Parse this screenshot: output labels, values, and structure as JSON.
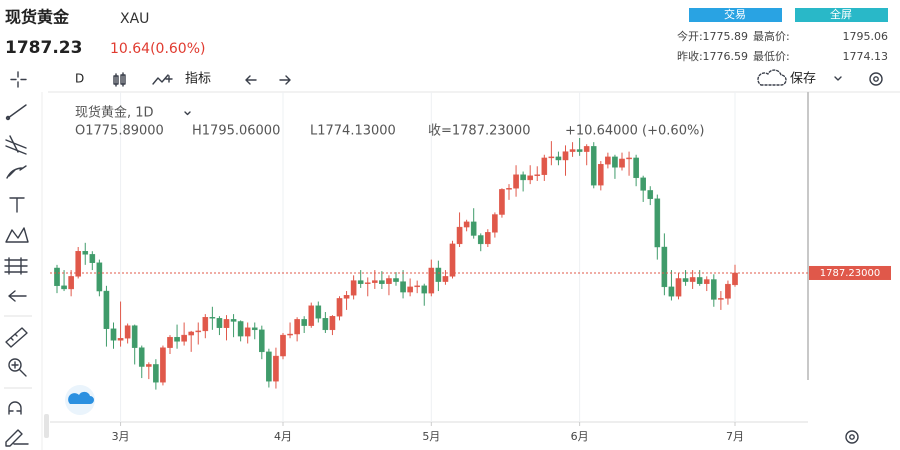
{
  "header": {
    "name": "现货黄金",
    "symbol": "XAU",
    "price": "1787.23",
    "change": "10.64(0.60%)",
    "buttons": [
      "交易",
      "全屏"
    ],
    "stats": [
      {
        "label": "今开:",
        "value": "1775.89"
      },
      {
        "label": "最高价:",
        "value": "1795.06"
      },
      {
        "label": "昨收:",
        "value": "1776.59"
      },
      {
        "label": "最低价:",
        "value": "1774.13"
      }
    ]
  },
  "toolbar": {
    "interval": "D",
    "indicators": "指标",
    "save": "保存"
  },
  "legend": {
    "title": "现货黄金, 1D",
    "open": "O1775.89000",
    "high": "H1795.06000",
    "low": "L1774.13000",
    "close": "收=1787.23000",
    "change": "+10.64000 (+0.60%)"
  },
  "chart_data": {
    "type": "candlestick",
    "categories": [
      null,
      null,
      null,
      null,
      null,
      null,
      null,
      null,
      null,
      "3月",
      null,
      null,
      null,
      null,
      null,
      null,
      null,
      null,
      null,
      null,
      null,
      null,
      null,
      null,
      null,
      null,
      null,
      null,
      null,
      null,
      null,
      null,
      "4月",
      null,
      null,
      null,
      null,
      null,
      null,
      null,
      null,
      null,
      null,
      null,
      null,
      null,
      null,
      null,
      null,
      null,
      null,
      null,
      null,
      "5月",
      null,
      null,
      null,
      null,
      null,
      null,
      null,
      null,
      null,
      null,
      null,
      null,
      null,
      null,
      null,
      null,
      null,
      null,
      null,
      null,
      "6月",
      null,
      null,
      null,
      null,
      null,
      null,
      null,
      null,
      null,
      null,
      null,
      null,
      null,
      null,
      null,
      null,
      null,
      null,
      null,
      null,
      null,
      "7月"
    ],
    "open": [
      1792,
      1775,
      1772,
      1784,
      1808,
      1805,
      1797,
      1770,
      1734,
      1723,
      1725,
      1737,
      1716,
      1698,
      1700,
      1683,
      1716,
      1726,
      1722,
      1728,
      1731,
      1732,
      1745,
      1744,
      1735,
      1743,
      1741,
      1727,
      1735,
      1733,
      1712,
      1684,
      1708,
      1728,
      1729,
      1743,
      1737,
      1756,
      1744,
      1733,
      1746,
      1763,
      1766,
      1780,
      1777,
      1778,
      1780,
      1777,
      1782,
      1779,
      1769,
      1774,
      1775,
      1768,
      1792,
      1779,
      1784,
      1815,
      1831,
      1836,
      1823,
      1815,
      1826,
      1843,
      1867,
      1868,
      1881,
      1876,
      1880,
      1881,
      1897,
      1898,
      1895,
      1903,
      1905,
      1903,
      1908,
      1871,
      1891,
      1898,
      1888,
      1896,
      1897,
      1878,
      1866,
      1858,
      1812,
      1774,
      1765,
      1782,
      1779,
      1783,
      1777,
      1781,
      1762,
      1763,
      1775.89
    ],
    "high": [
      1795,
      1790,
      1790,
      1812,
      1816,
      1808,
      1800,
      1775,
      1740,
      1760,
      1739,
      1738,
      1718,
      1702,
      1705,
      1718,
      1728,
      1738,
      1740,
      1732,
      1740,
      1748,
      1755,
      1746,
      1747,
      1748,
      1742,
      1740,
      1740,
      1737,
      1715,
      1716,
      1730,
      1740,
      1745,
      1746,
      1759,
      1760,
      1750,
      1747,
      1765,
      1770,
      1785,
      1790,
      1783,
      1790,
      1789,
      1785,
      1788,
      1790,
      1782,
      1780,
      1777,
      1800,
      1799,
      1790,
      1818,
      1845,
      1838,
      1849,
      1825,
      1829,
      1845,
      1868,
      1872,
      1890,
      1884,
      1890,
      1889,
      1900,
      1913,
      1903,
      1909,
      1912,
      1916,
      1910,
      1912,
      1894,
      1902,
      1900,
      1902,
      1903,
      1900,
      1880,
      1870,
      1862,
      1825,
      1790,
      1787,
      1790,
      1790,
      1790,
      1784,
      1786,
      1770,
      1780,
      1795.06
    ],
    "low": [
      1768,
      1770,
      1765,
      1782,
      1795,
      1790,
      1765,
      1717,
      1715,
      1717,
      1720,
      1700,
      1687,
      1686,
      1676,
      1680,
      1710,
      1715,
      1718,
      1712,
      1719,
      1725,
      1733,
      1728,
      1723,
      1726,
      1722,
      1720,
      1724,
      1705,
      1678,
      1677,
      1705,
      1725,
      1722,
      1730,
      1735,
      1740,
      1730,
      1728,
      1742,
      1752,
      1762,
      1773,
      1765,
      1772,
      1772,
      1766,
      1775,
      1763,
      1765,
      1768,
      1756,
      1765,
      1770,
      1776,
      1782,
      1812,
      1827,
      1820,
      1808,
      1812,
      1821,
      1840,
      1857,
      1860,
      1865,
      1872,
      1875,
      1875,
      1890,
      1890,
      1880,
      1898,
      1899,
      1890,
      1868,
      1866,
      1887,
      1877,
      1885,
      1880,
      1870,
      1855,
      1852,
      1800,
      1766,
      1761,
      1762,
      1775,
      1772,
      1775,
      1770,
      1755,
      1752,
      1757,
      1774.13
    ],
    "close": [
      1775,
      1772,
      1784,
      1808,
      1805,
      1797,
      1770,
      1734,
      1723,
      1725,
      1737,
      1716,
      1698,
      1700,
      1683,
      1716,
      1726,
      1722,
      1728,
      1731,
      1732,
      1745,
      1744,
      1735,
      1743,
      1741,
      1727,
      1735,
      1733,
      1712,
      1684,
      1708,
      1728,
      1729,
      1743,
      1737,
      1756,
      1744,
      1733,
      1746,
      1763,
      1766,
      1780,
      1777,
      1778,
      1780,
      1777,
      1782,
      1779,
      1769,
      1774,
      1775,
      1768,
      1792,
      1779,
      1784,
      1815,
      1831,
      1836,
      1823,
      1815,
      1826,
      1843,
      1867,
      1868,
      1881,
      1876,
      1880,
      1881,
      1897,
      1898,
      1895,
      1903,
      1905,
      1903,
      1908,
      1871,
      1891,
      1898,
      1888,
      1896,
      1897,
      1878,
      1866,
      1858,
      1812,
      1774,
      1765,
      1782,
      1779,
      1783,
      1777,
      1781,
      1762,
      1763,
      1776.59,
      1787.23
    ],
    "up_color": "#e0584a",
    "down_color": "#3f9b6a",
    "ylim": [
      1647,
      1957
    ],
    "grid": true,
    "last_price_label": "1787.23000"
  }
}
